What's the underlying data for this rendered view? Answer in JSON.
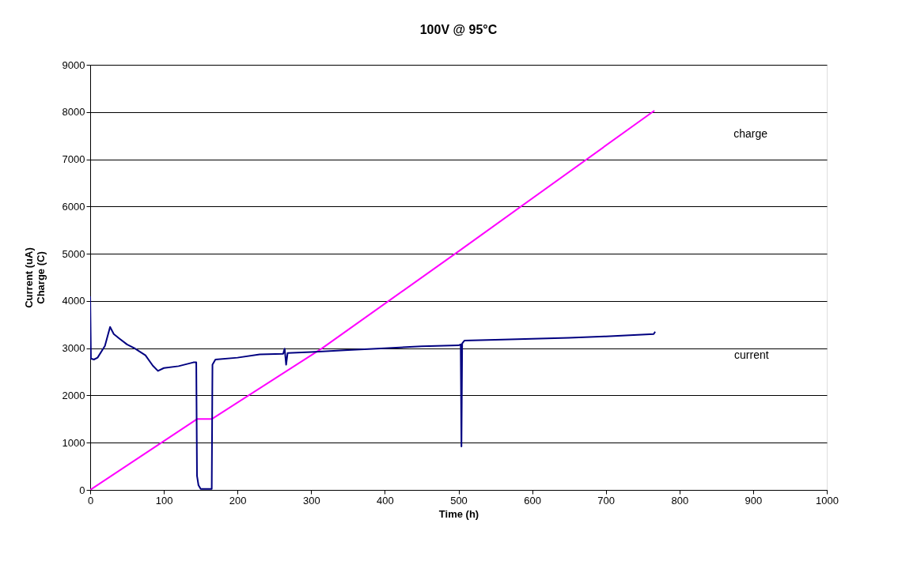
{
  "chart_data": {
    "type": "line",
    "title": "100V @ 95°C",
    "xlabel": "Time (h)",
    "ylabel": "Current (uA)\nCharge (C)",
    "xlim": [
      0,
      1000
    ],
    "xticks": [
      0,
      100,
      200,
      300,
      400,
      500,
      600,
      700,
      800,
      900,
      1000
    ],
    "ylim": [
      0,
      9000
    ],
    "yticks": [
      0,
      1000,
      2000,
      3000,
      4000,
      5000,
      6000,
      7000,
      8000,
      9000
    ],
    "grid": "y",
    "legend": false,
    "series": [
      {
        "color": "#ff00ff",
        "x": [
          0,
          145,
          165,
          315,
          500,
          766
        ],
        "values": [
          0,
          1500,
          1500,
          3000,
          5050,
          8030
        ]
      },
      {
        "color": "#000080",
        "x": [
          0,
          1,
          5,
          10,
          20,
          27,
          32,
          40,
          50,
          60,
          75,
          85,
          92,
          100,
          120,
          140,
          144,
          145,
          147,
          150,
          165,
          166,
          170,
          200,
          230,
          262,
          264,
          266,
          268,
          300,
          350,
          400,
          450,
          500,
          503,
          504,
          505,
          508,
          550,
          600,
          650,
          700,
          765,
          767
        ],
        "values": [
          4100,
          2780,
          2760,
          2800,
          3050,
          3450,
          3300,
          3200,
          3080,
          3000,
          2850,
          2630,
          2520,
          2580,
          2620,
          2700,
          2700,
          300,
          100,
          20,
          20,
          2650,
          2760,
          2800,
          2870,
          2880,
          2990,
          2650,
          2900,
          2920,
          2960,
          3000,
          3040,
          3060,
          3080,
          920,
          3100,
          3160,
          3180,
          3200,
          3220,
          3250,
          3300,
          3350
        ]
      }
    ],
    "annotations": [
      "charge",
      "current"
    ]
  }
}
